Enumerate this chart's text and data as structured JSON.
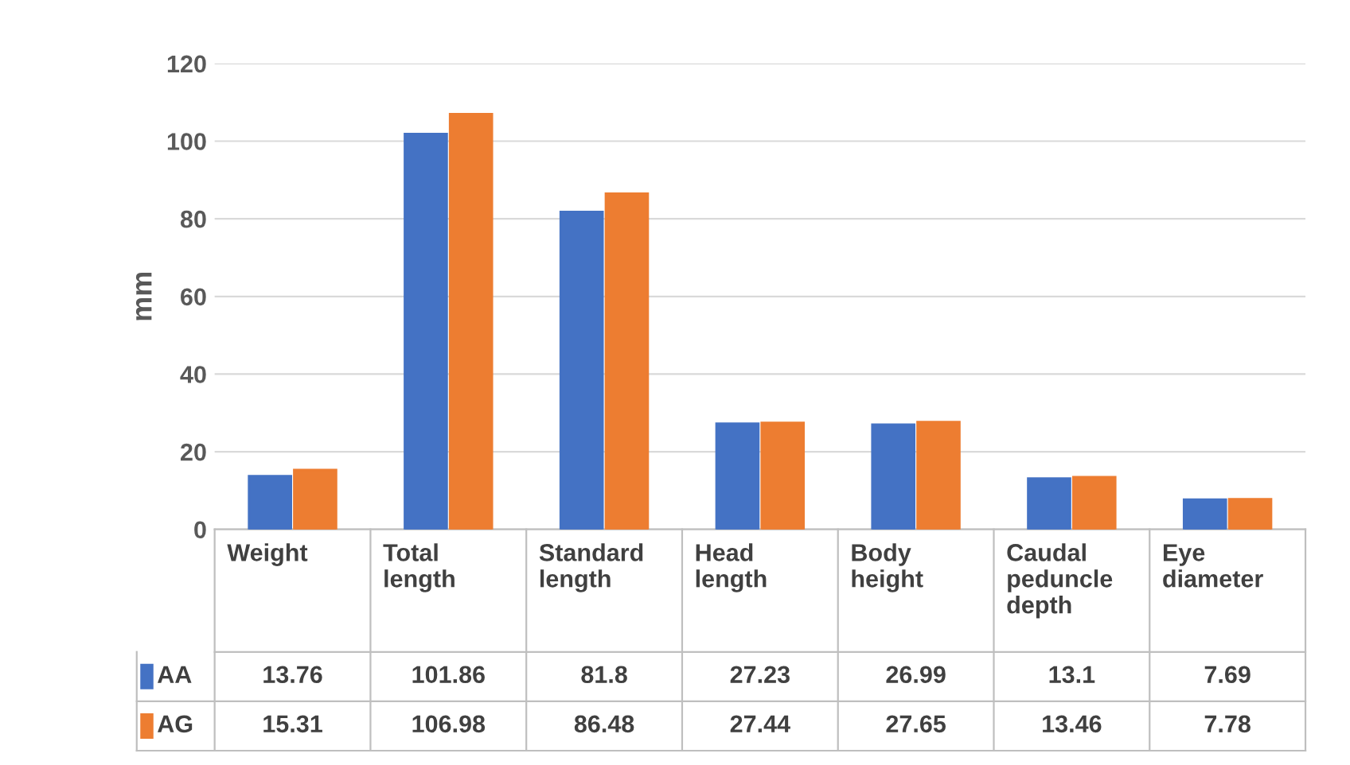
{
  "chart_data": {
    "type": "bar",
    "ylabel": "mm",
    "categories": [
      "Weight",
      "Total\nlength",
      "Standard\nlength",
      "Head\nlength",
      "Body\nheight",
      "Caudal\npeduncle\ndepth",
      "Eye\ndiameter"
    ],
    "series": [
      {
        "name": "AA",
        "color": "#4472c4",
        "values": [
          13.76,
          101.86,
          81.8,
          27.23,
          26.99,
          13.1,
          7.69
        ]
      },
      {
        "name": "AG",
        "color": "#ed7d31",
        "values": [
          15.31,
          106.98,
          86.48,
          27.44,
          27.65,
          13.46,
          7.78
        ]
      }
    ],
    "ylim": [
      0,
      120
    ],
    "yticks": [
      0,
      20,
      40,
      60,
      80,
      100,
      120
    ],
    "grid": "y",
    "legend": "bottom",
    "data_labels": true
  }
}
